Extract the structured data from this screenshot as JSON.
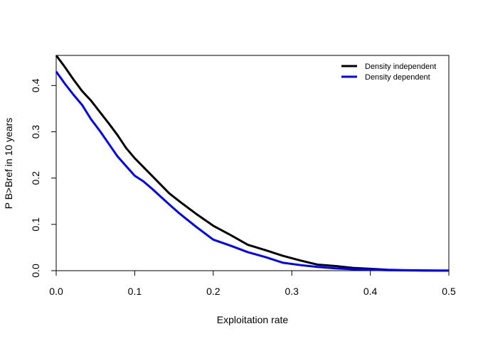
{
  "chart_data": {
    "type": "line",
    "title": "",
    "xlabel": "Exploitation rate",
    "ylabel": "P B>Bref in 10 years",
    "xlim": [
      0,
      0.5
    ],
    "ylim": [
      0,
      0.465
    ],
    "xticks": [
      0.0,
      0.1,
      0.2,
      0.3,
      0.4,
      0.5
    ],
    "xtick_labels": [
      "0.0",
      "0.1",
      "0.2",
      "0.3",
      "0.4",
      "0.5"
    ],
    "yticks": [
      0.0,
      0.1,
      0.2,
      0.3,
      0.4
    ],
    "ytick_labels": [
      "0.0",
      "0.1",
      "0.2",
      "0.3",
      "0.4"
    ],
    "grid": false,
    "legend_position": "top-right",
    "series": [
      {
        "name": "Density independent",
        "color": "#000000",
        "x": [
          0,
          0.011,
          0.022,
          0.033,
          0.044,
          0.056,
          0.067,
          0.078,
          0.089,
          0.1,
          0.111,
          0.122,
          0.133,
          0.144,
          0.156,
          0.178,
          0.2,
          0.222,
          0.244,
          0.267,
          0.289,
          0.311,
          0.333,
          0.356,
          0.378,
          0.4,
          0.422,
          0.444,
          0.467,
          0.489,
          0.5
        ],
        "y": [
          0.465,
          0.44,
          0.413,
          0.388,
          0.368,
          0.342,
          0.318,
          0.293,
          0.265,
          0.243,
          0.224,
          0.205,
          0.186,
          0.167,
          0.151,
          0.123,
          0.097,
          0.077,
          0.056,
          0.044,
          0.032,
          0.022,
          0.013,
          0.01,
          0.006,
          0.004,
          0.002,
          0.001,
          0.0005,
          0.0002,
          0.0001
        ]
      },
      {
        "name": "Density dependent",
        "color": "#0000ff",
        "x": [
          0,
          0.011,
          0.022,
          0.033,
          0.044,
          0.056,
          0.067,
          0.078,
          0.089,
          0.1,
          0.111,
          0.122,
          0.133,
          0.144,
          0.156,
          0.178,
          0.2,
          0.222,
          0.244,
          0.267,
          0.289,
          0.311,
          0.333,
          0.356,
          0.378,
          0.4,
          0.422,
          0.444,
          0.467,
          0.489,
          0.5
        ],
        "y": [
          0.43,
          0.404,
          0.38,
          0.358,
          0.328,
          0.301,
          0.274,
          0.247,
          0.226,
          0.205,
          0.193,
          0.177,
          0.16,
          0.143,
          0.125,
          0.095,
          0.067,
          0.054,
          0.04,
          0.029,
          0.017,
          0.012,
          0.008,
          0.005,
          0.003,
          0.002,
          0.001,
          0.0005,
          0.0002,
          0.0001,
          0.0001
        ]
      }
    ]
  }
}
